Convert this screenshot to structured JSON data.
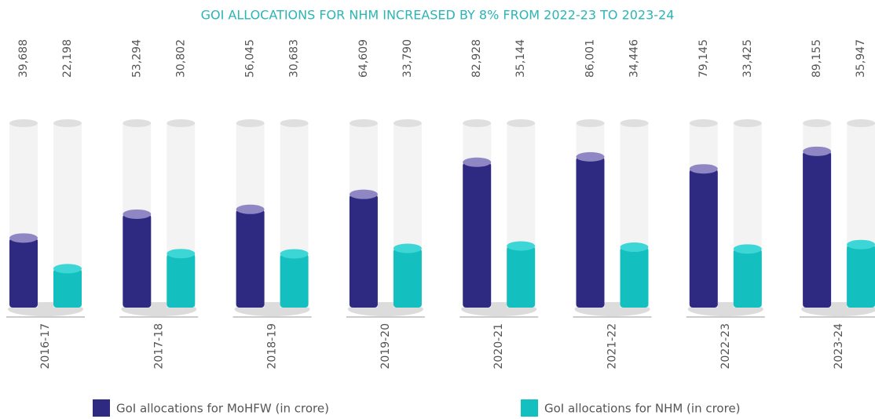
{
  "chart_data": {
    "type": "bar",
    "title": "GOI ALLOCATIONS FOR NHM INCREASED BY 8% FROM 2022-23 TO 2023-24",
    "categories": [
      "2016-17",
      "2017-18",
      "2018-19",
      "2019-20",
      "2020-21",
      "2021-22",
      "2022-23",
      "2023-24"
    ],
    "series": [
      {
        "name": "GoI allocations for MoHFW (in crore)",
        "color": "#2e2a82",
        "values": [
          39688,
          53294,
          56045,
          64609,
          82928,
          86001,
          79145,
          89155
        ],
        "value_labels": [
          "39,688",
          "53,294",
          "56,045",
          "64,609",
          "82,928",
          "86,001",
          "79,145",
          "89,155"
        ]
      },
      {
        "name": "GoI allocations for NHM (in crore)",
        "color": "#14bfbf",
        "values": [
          22198,
          30802,
          30683,
          33790,
          35144,
          34446,
          33425,
          35947
        ],
        "value_labels": [
          "22,198",
          "30,802",
          "30,683",
          "33,790",
          "35,144",
          "34,446",
          "33,425",
          "35,947"
        ]
      }
    ]
  }
}
